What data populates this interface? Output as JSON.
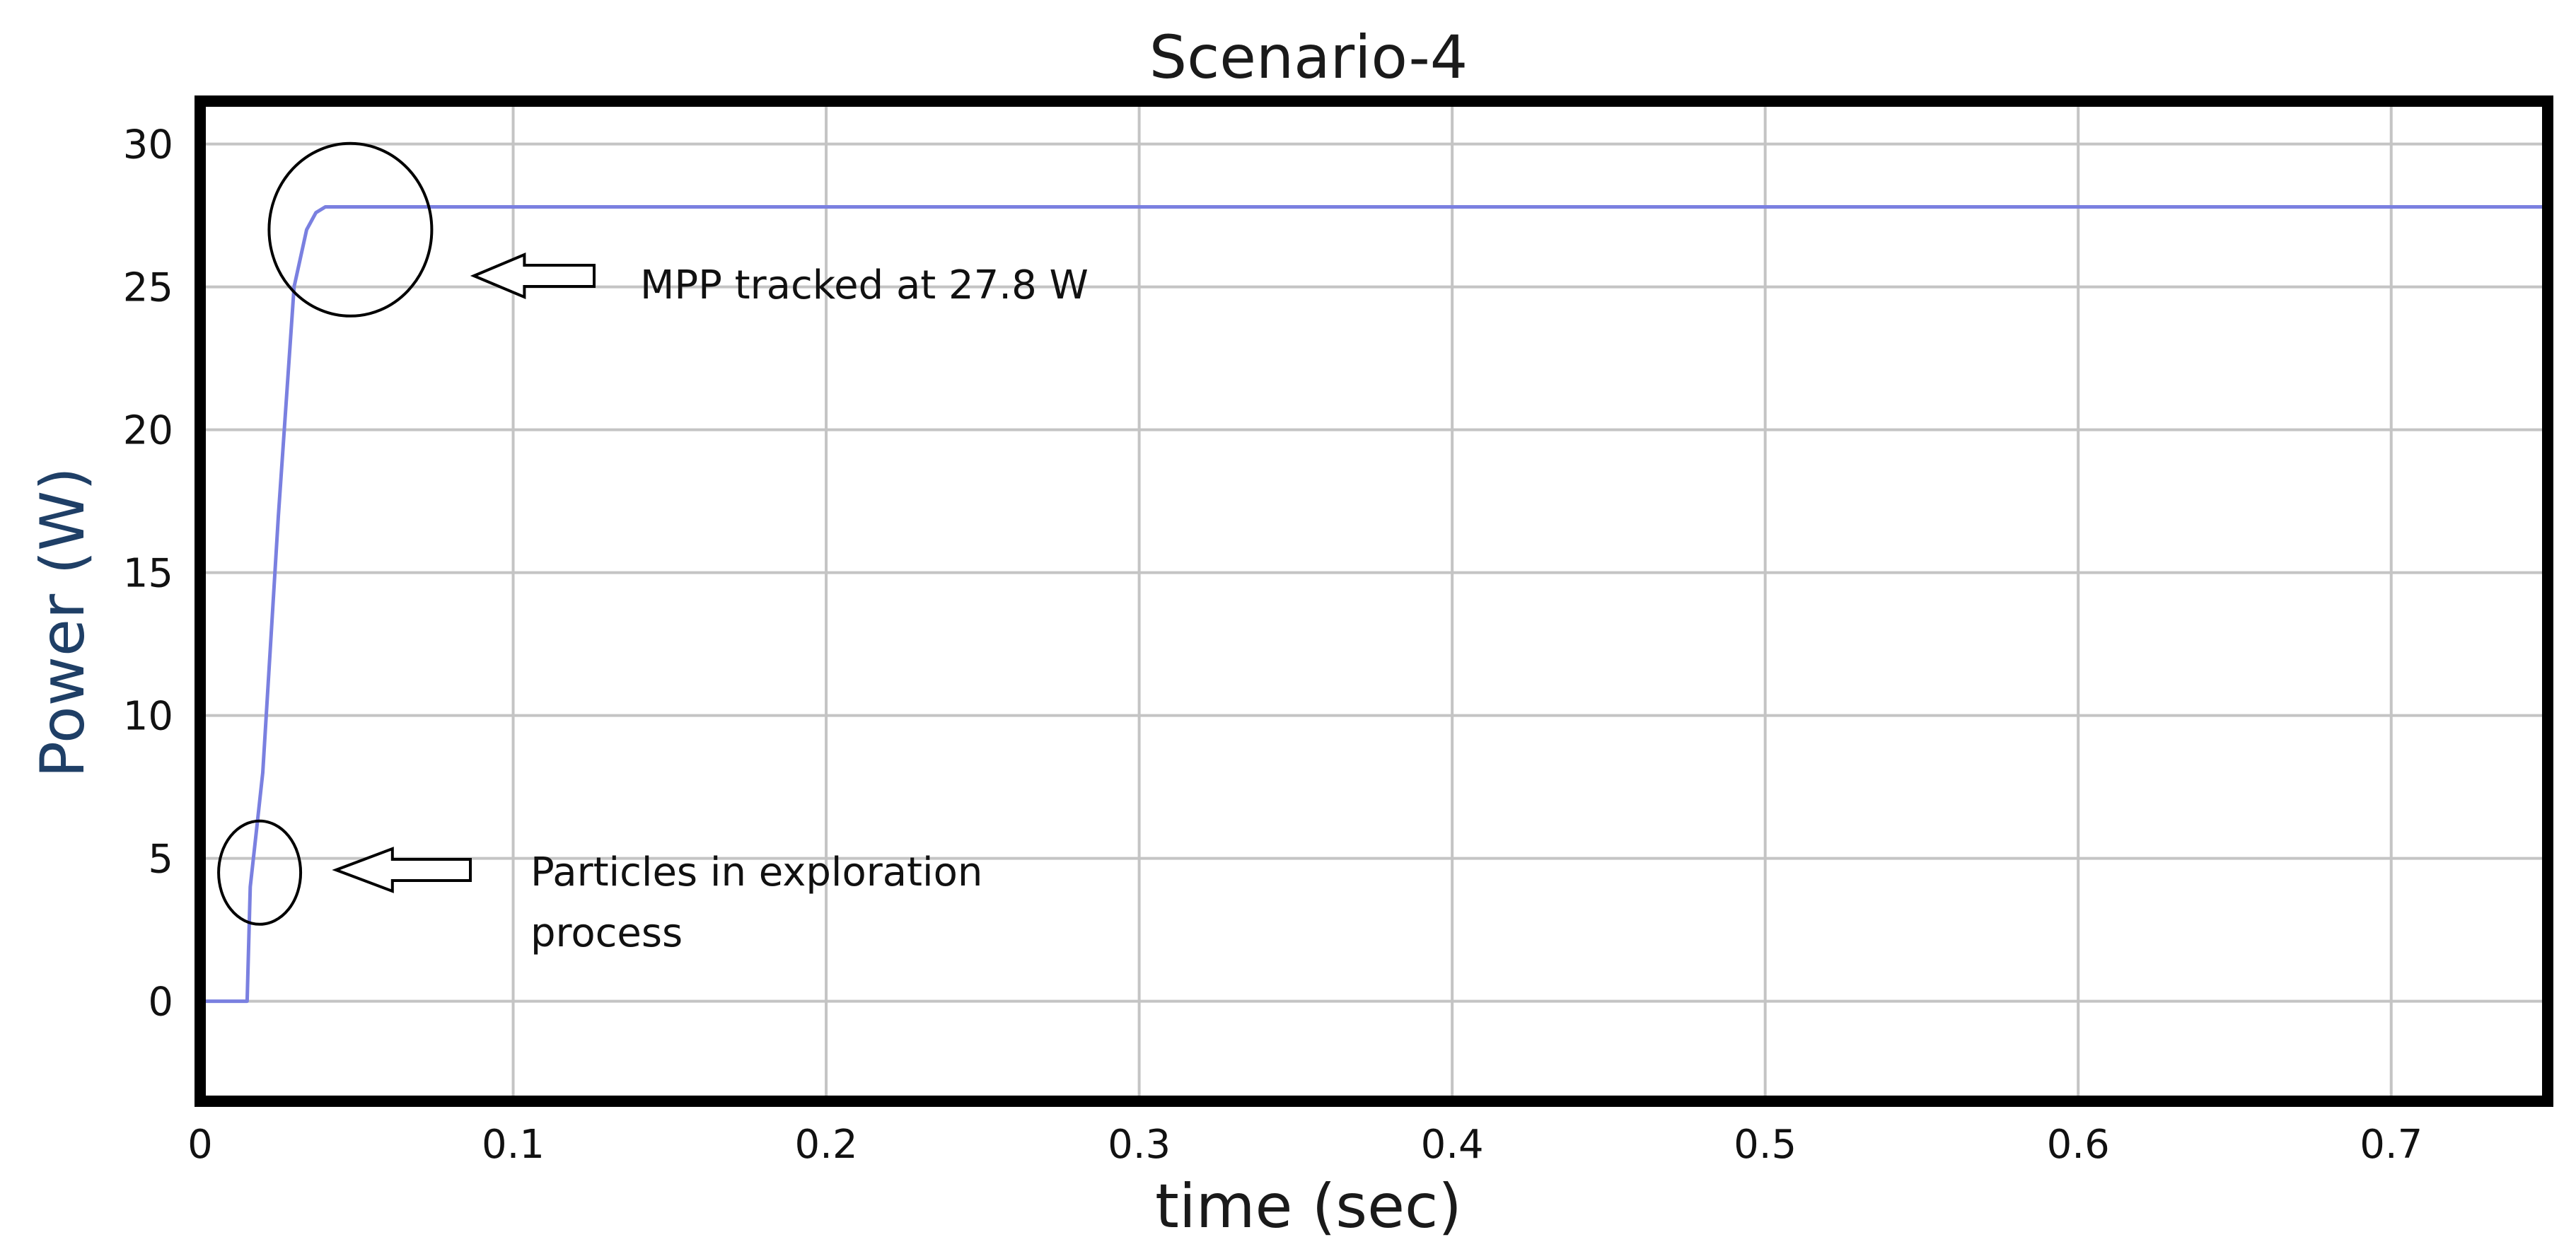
{
  "chart_data": {
    "type": "line",
    "title": "Scenario-4",
    "xlabel": "time (sec)",
    "ylabel": "Power (W)",
    "xlim": [
      0,
      0.75
    ],
    "ylim": [
      -3.5,
      31.5
    ],
    "grid": true,
    "x_ticks": [
      0,
      0.1,
      0.2,
      0.3,
      0.4,
      0.5,
      0.6,
      0.7
    ],
    "x_tick_labels": [
      "0",
      "0.1",
      "0.2",
      "0.3",
      "0.4",
      "0.5",
      "0.6",
      "0.7"
    ],
    "y_ticks": [
      0,
      5,
      10,
      15,
      20,
      25,
      30
    ],
    "y_tick_labels": [
      "0",
      "5",
      "10",
      "15",
      "20",
      "25",
      "30"
    ],
    "series": [
      {
        "color": "#7a80e0",
        "x": [
          0,
          0.015,
          0.016,
          0.018,
          0.02,
          0.025,
          0.03,
          0.034,
          0.037,
          0.04,
          0.045,
          0.75
        ],
        "y": [
          0,
          0,
          4.0,
          6.0,
          8.0,
          17.0,
          25.0,
          27.0,
          27.6,
          27.8,
          27.8,
          27.8
        ]
      }
    ],
    "annotations": [
      {
        "lines": [
          "MPP tracked at 27.8 W"
        ],
        "target_x": 0.048,
        "target_y": 27.0
      },
      {
        "lines": [
          "Particles in exploration",
          "process"
        ],
        "target_x": 0.019,
        "target_y": 4.5
      }
    ]
  }
}
